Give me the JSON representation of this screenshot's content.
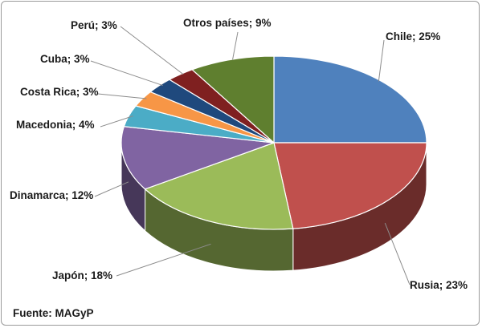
{
  "chart_data": {
    "type": "pie",
    "title": "",
    "slices": [
      {
        "label": "Chile",
        "value": 25,
        "display": "Chile; 25%",
        "color": "#4f81bd"
      },
      {
        "label": "Rusia",
        "value": 23,
        "display": "Rusia; 23%",
        "color": "#c0504d"
      },
      {
        "label": "Japón",
        "value": 18,
        "display": "Japón; 18%",
        "color": "#9bbb59"
      },
      {
        "label": "Dinamarca",
        "value": 12,
        "display": "Dinamarca; 12%",
        "color": "#8064a2"
      },
      {
        "label": "Macedonia",
        "value": 4,
        "display": "Macedonia; 4%",
        "color": "#4bacc6"
      },
      {
        "label": "Costa Rica",
        "value": 3,
        "display": "Costa Rica; 3%",
        "color": "#f79646"
      },
      {
        "label": "Cuba",
        "value": 3,
        "display": "Cuba; 3%",
        "color": "#1f497d"
      },
      {
        "label": "Perú",
        "value": 3,
        "display": "Perú;  3%",
        "color": "#7f2020"
      },
      {
        "label": "Otros países",
        "value": 9,
        "display": "Otros países; 9%",
        "color": "#5f7f2f"
      }
    ],
    "source": "Fuente: MAGyP",
    "legend": "none"
  }
}
